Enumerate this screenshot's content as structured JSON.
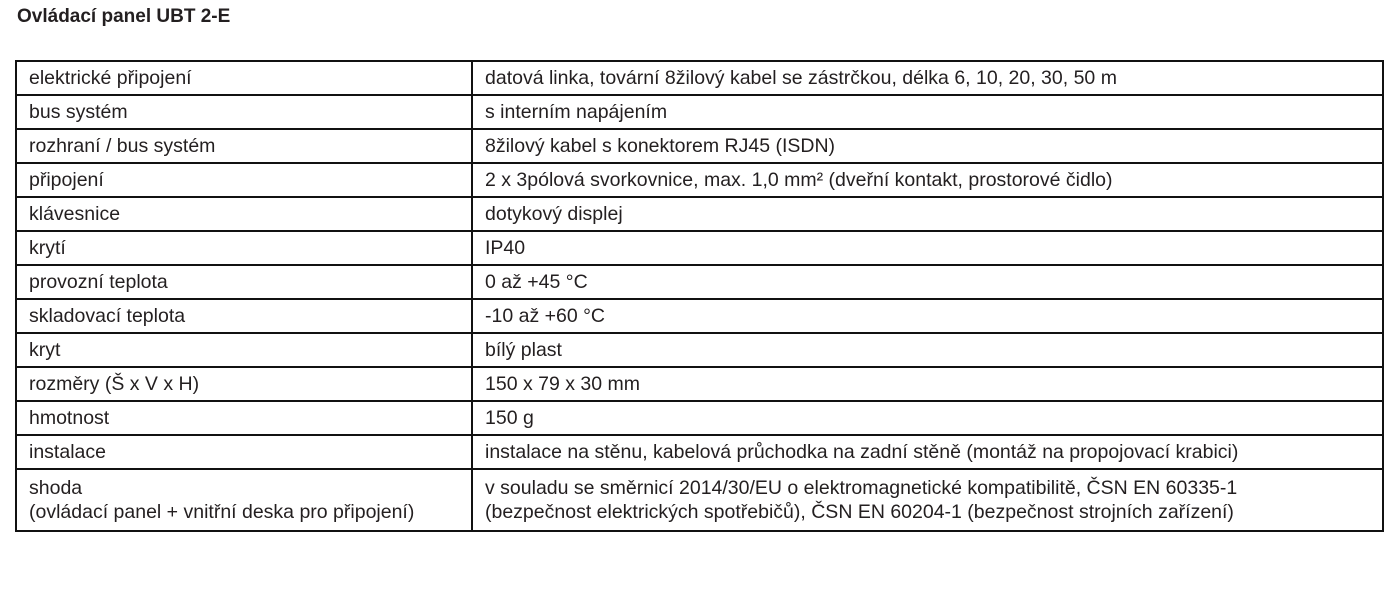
{
  "title": "Ovládací panel UBT 2-E",
  "rows": [
    {
      "label": "elektrické připojení",
      "value": "datová linka, tovární 8žilový kabel se zástrčkou, délka 6, 10, 20, 30, 50 m"
    },
    {
      "label": "bus systém",
      "value": "s interním napájením"
    },
    {
      "label": "rozhraní / bus systém",
      "value": "8žilový kabel s konektorem RJ45 (ISDN)"
    },
    {
      "label": "připojení",
      "value": "2 x 3pólová svorkovnice, max. 1,0 mm² (dveřní kontakt, prostorové čidlo)"
    },
    {
      "label": "klávesnice",
      "value": "dotykový displej"
    },
    {
      "label": "krytí",
      "value": "IP40"
    },
    {
      "label": "provozní teplota",
      "value": "0 až +45 °C"
    },
    {
      "label": "skladovací teplota",
      "value": "-10 až +60 °C"
    },
    {
      "label": "kryt",
      "value": "bílý plast"
    },
    {
      "label": "rozměry (Š x V x H)",
      "value": "150 x 79 x 30 mm"
    },
    {
      "label": "hmotnost",
      "value": "150 g"
    },
    {
      "label": "instalace",
      "value": "instalace na stěnu, kabelová průchodka na zadní stěně (montáž na propojovací krabici)"
    }
  ],
  "last_row": {
    "label_lines": [
      "shoda",
      "(ovládací panel + vnitřní deska pro připojení)"
    ],
    "value_lines": [
      "v souladu se směrnicí 2014/30/EU o elektromagnetické kompatibilitě, ČSN EN 60335-1",
      "(bezpečnost elektrických spotřebičů), ČSN EN 60204-1 (bezpečnost strojních zařízení)"
    ]
  }
}
